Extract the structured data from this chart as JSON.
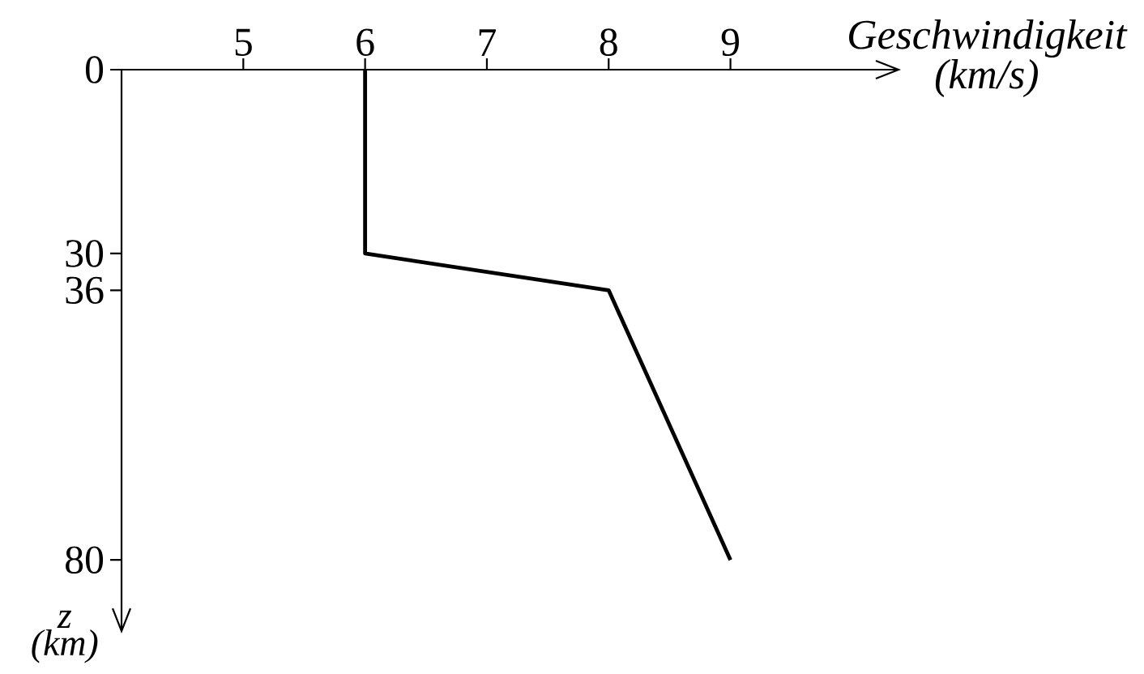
{
  "chart_data": {
    "type": "line",
    "xlabel": "Geschwindigkeit (km/s)",
    "ylabel": "z (km)",
    "x": [
      6,
      6,
      8,
      9
    ],
    "values": [
      0,
      30,
      36,
      80
    ],
    "color": "#000000",
    "line_style": "solid",
    "xlim": [
      4,
      10.4
    ],
    "ylim": [
      92,
      0
    ],
    "xticks": [
      5,
      6,
      7,
      8,
      9
    ],
    "yticks": [
      0,
      30,
      36,
      80
    ]
  }
}
